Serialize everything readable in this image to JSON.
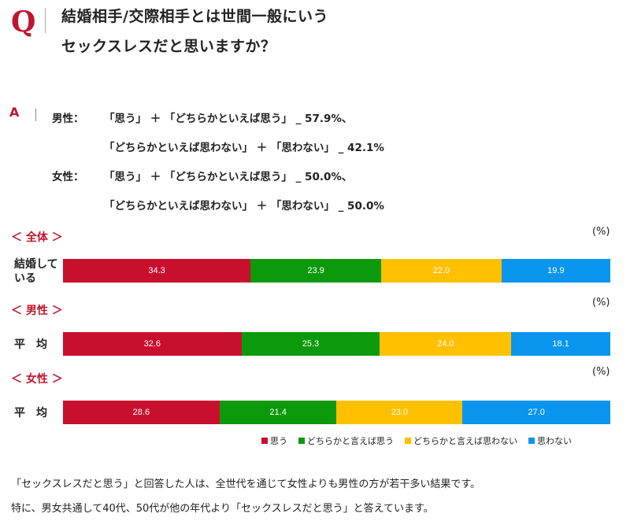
{
  "question": {
    "mark": "Q",
    "line1": "結婚相手/交際相手とは世間一般にいう",
    "line2": "セックスレスだと思いますか？"
  },
  "answer": {
    "mark": "A",
    "male_label": "男性：",
    "male_line1": "「思う」 ＋ 「どちらかといえば思う」 _ 57.9%、",
    "male_line2": "「どちらかといえば思わない」 ＋ 「思わない」 _ 42.1%",
    "female_label": "女性：",
    "female_line1": "「思う」 ＋ 「どちらかといえば思う」 _ 50.0%、",
    "female_line2": "「どちらかといえば思わない」 ＋ 「思わない」 _ 50.0%"
  },
  "unit": "(%)",
  "colors": [
    "#c8102e",
    "#0c9a0c",
    "#ffc000",
    "#0a95ee"
  ],
  "chart_data": [
    {
      "type": "bar",
      "orientation": "horizontal-stacked",
      "section": "＜ 全体 ＞",
      "categories": [
        "結婚している"
      ],
      "series": [
        {
          "name": "思う",
          "values": [
            34.3
          ]
        },
        {
          "name": "どちらかと言えば思う",
          "values": [
            23.9
          ]
        },
        {
          "name": "どちらかと言えば思わない",
          "values": [
            22.0
          ]
        },
        {
          "name": "思わない",
          "values": [
            19.9
          ]
        }
      ]
    },
    {
      "type": "bar",
      "orientation": "horizontal-stacked",
      "section": "＜ 男性 ＞",
      "categories": [
        "平　均"
      ],
      "series": [
        {
          "name": "思う",
          "values": [
            32.6
          ]
        },
        {
          "name": "どちらかと言えば思う",
          "values": [
            25.3
          ]
        },
        {
          "name": "どちらかと言えば思わない",
          "values": [
            24.0
          ]
        },
        {
          "name": "思わない",
          "values": [
            18.1
          ]
        }
      ]
    },
    {
      "type": "bar",
      "orientation": "horizontal-stacked",
      "section": "＜ 女性 ＞",
      "categories": [
        "平　均"
      ],
      "series": [
        {
          "name": "思う",
          "values": [
            28.6
          ]
        },
        {
          "name": "どちらかと言えば思う",
          "values": [
            21.4
          ]
        },
        {
          "name": "どちらかと言えば思わない",
          "values": [
            23.0
          ]
        },
        {
          "name": "思わない",
          "values": [
            27.0
          ]
        }
      ]
    }
  ],
  "legend": [
    "思う",
    "どちらかと言えば思う",
    "どちらかと言えば思わない",
    "思わない"
  ],
  "notes": [
    "「セックスレスだと思う」と回答した人は、全世代を通じて女性よりも男性の方が若干多い結果です。",
    "特に、男女共通して40代、50代が他の年代より「セックスレスだと思う」と答えています。"
  ]
}
